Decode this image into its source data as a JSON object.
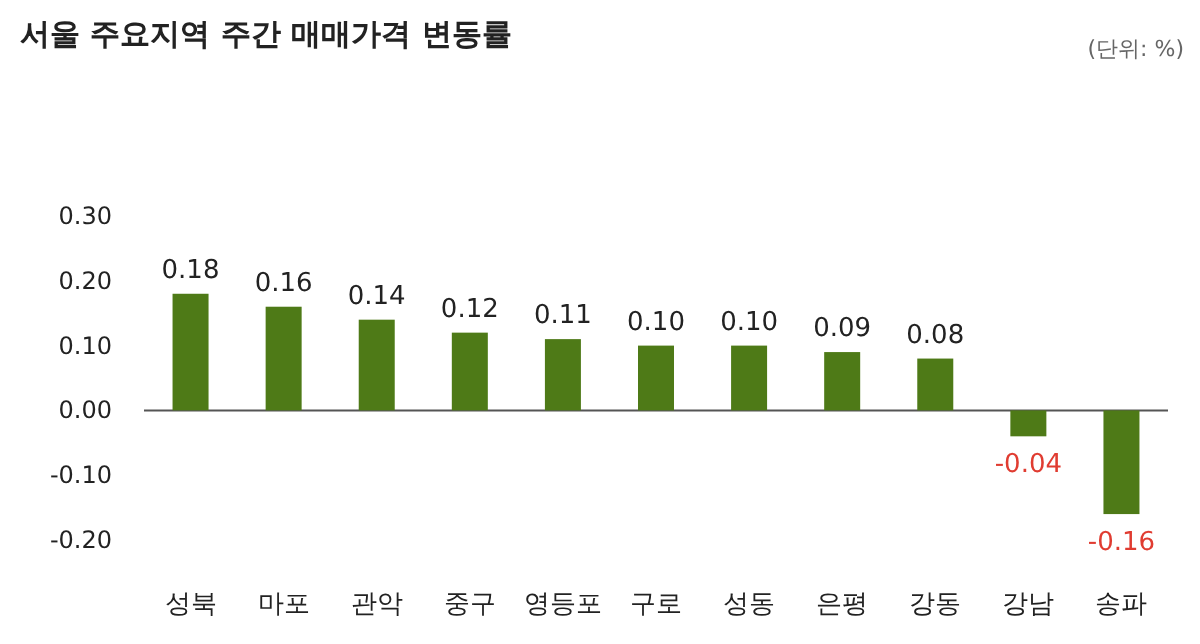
{
  "chart_data": {
    "type": "bar",
    "title": "서울 주요지역 주간 매매가격 변동률",
    "annotations": [
      "(단위: %)"
    ],
    "categories": [
      "성북",
      "마포",
      "관악",
      "중구",
      "영등포",
      "구로",
      "성동",
      "은평",
      "강동",
      "강남",
      "송파"
    ],
    "values": [
      0.18,
      0.16,
      0.14,
      0.12,
      0.11,
      0.1,
      0.1,
      0.09,
      0.08,
      -0.04,
      -0.16
    ],
    "value_labels": [
      "0.18",
      "0.16",
      "0.14",
      "0.12",
      "0.11",
      "0.10",
      "0.10",
      "0.09",
      "0.08",
      "-0.04",
      "-0.16"
    ],
    "color": "#4e7a17",
    "ylim": [
      -0.2,
      0.3
    ],
    "yticks": [
      {
        "value": -0.2,
        "label": "-0.20"
      },
      {
        "value": -0.1,
        "label": "-0.10"
      },
      {
        "value": 0,
        "label": "0.00"
      },
      {
        "value": 0.1,
        "label": "0.10"
      },
      {
        "value": 0.2,
        "label": "0.20"
      },
      {
        "value": 0.3,
        "label": "0.30"
      }
    ]
  }
}
